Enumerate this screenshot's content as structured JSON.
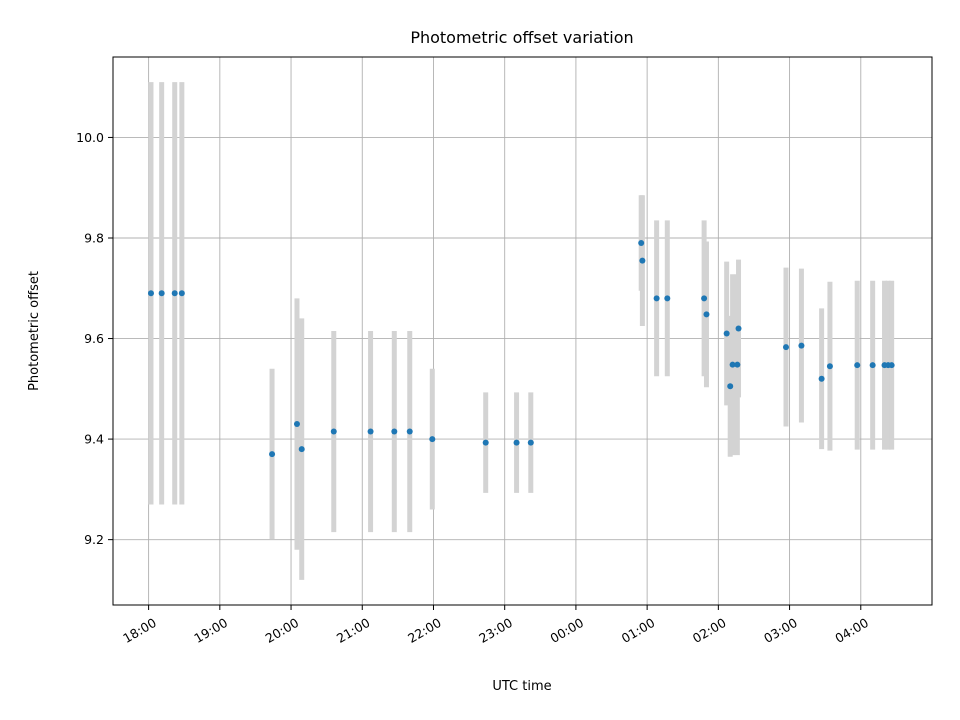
{
  "chart_data": {
    "type": "scatter",
    "title": "Photometric offset variation",
    "xlabel": "UTC time",
    "ylabel": "Photometric offset",
    "x_tick_labels": [
      "18:00",
      "19:00",
      "20:00",
      "21:00",
      "22:00",
      "23:00",
      "00:00",
      "01:00",
      "02:00",
      "03:00",
      "04:00"
    ],
    "y_tick_labels": [
      "9.2",
      "9.4",
      "9.6",
      "9.8",
      "10.0"
    ],
    "y_ticks": [
      9.2,
      9.4,
      9.6,
      9.8,
      10.0
    ],
    "x_range_hours": [
      17.5,
      29.0
    ],
    "ylim": [
      9.07,
      10.16
    ],
    "grid": true,
    "point_color": "#1f77b4",
    "errorbar_color": "#d3d3d3",
    "points": [
      {
        "t": "18:02",
        "y": 9.69,
        "yerr": 0.42
      },
      {
        "t": "18:11",
        "y": 9.69,
        "yerr": 0.42
      },
      {
        "t": "18:22",
        "y": 9.69,
        "yerr": 0.42
      },
      {
        "t": "18:28",
        "y": 9.69,
        "yerr": 0.42
      },
      {
        "t": "19:44",
        "y": 9.37,
        "yerr": 0.17
      },
      {
        "t": "20:05",
        "y": 9.43,
        "yerr": 0.25
      },
      {
        "t": "20:09",
        "y": 9.38,
        "yerr": 0.26
      },
      {
        "t": "20:36",
        "y": 9.415,
        "yerr": 0.2
      },
      {
        "t": "21:07",
        "y": 9.415,
        "yerr": 0.2
      },
      {
        "t": "21:27",
        "y": 9.415,
        "yerr": 0.2
      },
      {
        "t": "21:40",
        "y": 9.415,
        "yerr": 0.2
      },
      {
        "t": "21:59",
        "y": 9.4,
        "yerr": 0.14
      },
      {
        "t": "22:44",
        "y": 9.393,
        "yerr": 0.1
      },
      {
        "t": "23:10",
        "y": 9.393,
        "yerr": 0.1
      },
      {
        "t": "23:22",
        "y": 9.393,
        "yerr": 0.1
      },
      {
        "t": "00:55",
        "y": 9.79,
        "yerr": 0.095
      },
      {
        "t": "00:56",
        "y": 9.755,
        "yerr": 0.13
      },
      {
        "t": "01:08",
        "y": 9.68,
        "yerr": 0.155
      },
      {
        "t": "01:17",
        "y": 9.68,
        "yerr": 0.155
      },
      {
        "t": "01:48",
        "y": 9.68,
        "yerr": 0.155
      },
      {
        "t": "01:50",
        "y": 9.648,
        "yerr": 0.145
      },
      {
        "t": "02:07",
        "y": 9.61,
        "yerr": 0.143
      },
      {
        "t": "02:10",
        "y": 9.505,
        "yerr": 0.14
      },
      {
        "t": "02:12",
        "y": 9.548,
        "yerr": 0.18
      },
      {
        "t": "02:16",
        "y": 9.548,
        "yerr": 0.18
      },
      {
        "t": "02:17",
        "y": 9.62,
        "yerr": 0.137
      },
      {
        "t": "02:57",
        "y": 9.583,
        "yerr": 0.158
      },
      {
        "t": "03:10",
        "y": 9.586,
        "yerr": 0.153
      },
      {
        "t": "03:27",
        "y": 9.52,
        "yerr": 0.14
      },
      {
        "t": "03:34",
        "y": 9.545,
        "yerr": 0.168
      },
      {
        "t": "03:57",
        "y": 9.547,
        "yerr": 0.168
      },
      {
        "t": "04:10",
        "y": 9.547,
        "yerr": 0.168
      },
      {
        "t": "04:20",
        "y": 9.547,
        "yerr": 0.168
      },
      {
        "t": "04:23",
        "y": 9.547,
        "yerr": 0.168
      },
      {
        "t": "04:26",
        "y": 9.547,
        "yerr": 0.168
      }
    ]
  }
}
